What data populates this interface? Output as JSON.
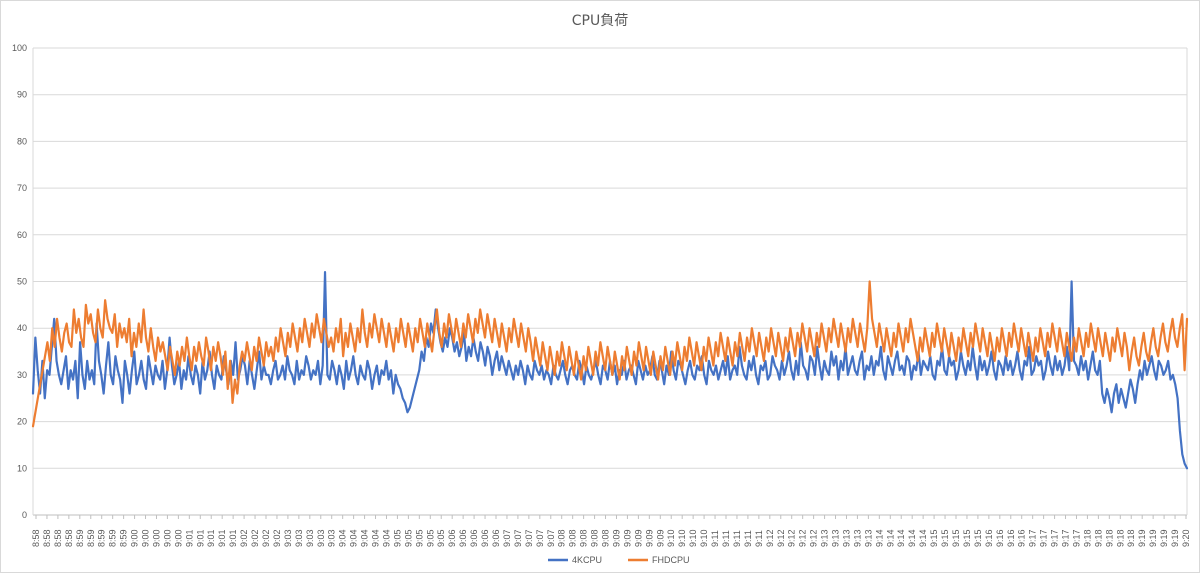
{
  "chart_data": {
    "type": "line",
    "title": "CPU負荷",
    "xlabel": "",
    "ylabel": "",
    "ylim": [
      0,
      100
    ],
    "yticks": [
      0,
      10,
      20,
      30,
      40,
      50,
      60,
      70,
      80,
      90,
      100
    ],
    "grid": true,
    "legend_position": "bottom",
    "x_tick_labels": [
      "8:58",
      "8:58",
      "8:58",
      "8:58",
      "8:59",
      "8:59",
      "8:59",
      "8:59",
      "8:59",
      "9:00",
      "9:00",
      "9:00",
      "9:00",
      "9:00",
      "9:01",
      "9:01",
      "9:01",
      "9:01",
      "9:01",
      "9:02",
      "9:02",
      "9:02",
      "9:02",
      "9:03",
      "9:03",
      "9:03",
      "9:03",
      "9:03",
      "9:04",
      "9:04",
      "9:04",
      "9:04",
      "9:04",
      "9:05",
      "9:05",
      "9:05",
      "9:05",
      "9:05",
      "9:06",
      "9:06",
      "9:06",
      "9:06",
      "9:06",
      "9:07",
      "9:07",
      "9:07",
      "9:07",
      "9:07",
      "9:08",
      "9:08",
      "9:08",
      "9:08",
      "9:08",
      "9:09",
      "9:09",
      "9:09",
      "9:09",
      "9:09",
      "9:10",
      "9:10",
      "9:10",
      "9:10",
      "9:11",
      "9:11",
      "9:11",
      "9:11",
      "9:11",
      "9:12",
      "9:12",
      "9:12",
      "9:12",
      "9:12",
      "9:13",
      "9:13",
      "9:13",
      "9:13",
      "9:13",
      "9:14",
      "9:14",
      "9:14",
      "9:14",
      "9:14",
      "9:15",
      "9:15",
      "9:15",
      "9:15",
      "9:15",
      "9:16",
      "9:16",
      "9:16",
      "9:16",
      "9:17",
      "9:17",
      "9:17",
      "9:17",
      "9:17",
      "9:18",
      "9:18",
      "9:18",
      "9:18",
      "9:18",
      "9:19",
      "9:19",
      "9:19",
      "9:19",
      "9:20"
    ],
    "series": [
      {
        "name": "4KCPU",
        "color": "#4472c4",
        "values": [
          26,
          38,
          31,
          26,
          33,
          25,
          31,
          30,
          36,
          42,
          33,
          30,
          28,
          31,
          34,
          27,
          31,
          29,
          33,
          25,
          37,
          30,
          27,
          33,
          29,
          31,
          28,
          41,
          33,
          30,
          26,
          32,
          37,
          30,
          28,
          34,
          31,
          29,
          24,
          33,
          30,
          26,
          31,
          35,
          28,
          30,
          33,
          29,
          27,
          34,
          31,
          28,
          32,
          30,
          29,
          33,
          27,
          31,
          38,
          32,
          28,
          30,
          33,
          27,
          31,
          29,
          34,
          30,
          28,
          32,
          30,
          26,
          33,
          29,
          31,
          35,
          30,
          27,
          32,
          30,
          29,
          34,
          31,
          28,
          33,
          30,
          37,
          29,
          31,
          34,
          32,
          28,
          33,
          30,
          27,
          31,
          35,
          29,
          32,
          30,
          30,
          28,
          31,
          33,
          29,
          30,
          32,
          29,
          34,
          31,
          30,
          28,
          33,
          29,
          31,
          30,
          34,
          32,
          29,
          31,
          30,
          33,
          28,
          32,
          52,
          30,
          29,
          33,
          31,
          28,
          32,
          30,
          27,
          33,
          29,
          31,
          34,
          30,
          28,
          32,
          30,
          29,
          33,
          31,
          27,
          30,
          32,
          28,
          31,
          30,
          33,
          29,
          31,
          26,
          30,
          28,
          27,
          25,
          24,
          22,
          23,
          25,
          27,
          29,
          31,
          35,
          33,
          38,
          36,
          41,
          39,
          44,
          40,
          37,
          35,
          38,
          36,
          40,
          38,
          35,
          37,
          34,
          36,
          39,
          33,
          36,
          34,
          38,
          35,
          33,
          37,
          35,
          32,
          36,
          34,
          30,
          33,
          35,
          31,
          34,
          32,
          30,
          33,
          31,
          29,
          32,
          30,
          33,
          31,
          28,
          32,
          30,
          29,
          33,
          31,
          30,
          32,
          29,
          31,
          30,
          28,
          32,
          30,
          29,
          31,
          33,
          30,
          28,
          31,
          32,
          30,
          29,
          33,
          31,
          28,
          32,
          30,
          29,
          31,
          33,
          30,
          28,
          32,
          31,
          29,
          33,
          30,
          32,
          28,
          31,
          30,
          33,
          29,
          31,
          32,
          30,
          28,
          33,
          31,
          29,
          32,
          30,
          31,
          34,
          30,
          29,
          33,
          31,
          28,
          32,
          30,
          35,
          31,
          29,
          33,
          32,
          30,
          28,
          31,
          33,
          30,
          29,
          32,
          31,
          34,
          30,
          28,
          33,
          31,
          30,
          32,
          29,
          31,
          33,
          30,
          34,
          29,
          31,
          32,
          30,
          36,
          32,
          30,
          29,
          33,
          31,
          34,
          30,
          28,
          32,
          31,
          33,
          29,
          30,
          34,
          32,
          31,
          29,
          33,
          30,
          32,
          35,
          31,
          29,
          33,
          30,
          37,
          32,
          31,
          29,
          34,
          33,
          30,
          36,
          32,
          29,
          33,
          31,
          30,
          35,
          32,
          34,
          29,
          33,
          31,
          36,
          30,
          32,
          34,
          31,
          30,
          33,
          35,
          29,
          32,
          31,
          34,
          30,
          33,
          32,
          36,
          31,
          29,
          34,
          32,
          30,
          33,
          35,
          31,
          32,
          30,
          34,
          33,
          29,
          32,
          31,
          35,
          30,
          33,
          32,
          31,
          34,
          30,
          29,
          33,
          32,
          36,
          31,
          30,
          34,
          32,
          33,
          29,
          31,
          35,
          32,
          30,
          33,
          31,
          36,
          32,
          29,
          34,
          31,
          33,
          30,
          32,
          35,
          31,
          29,
          33,
          32,
          30,
          34,
          31,
          33,
          30,
          32,
          35,
          31,
          29,
          33,
          32,
          36,
          30,
          31,
          34,
          32,
          33,
          29,
          31,
          35,
          32,
          30,
          34,
          31,
          33,
          30,
          32,
          36,
          31,
          50,
          33,
          32,
          30,
          34,
          31,
          33,
          29,
          32,
          35,
          31,
          30,
          33,
          26,
          24,
          27,
          25,
          22,
          26,
          28,
          24,
          27,
          25,
          23,
          26,
          29,
          27,
          24,
          28,
          31,
          29,
          33,
          30,
          32,
          34,
          31,
          29,
          33,
          32,
          30,
          31,
          33,
          29,
          30,
          28,
          25,
          18,
          13,
          11,
          10
        ]
      },
      {
        "name": "FHDCPU",
        "color": "#ed7d31",
        "values": [
          19,
          22,
          25,
          28,
          31,
          34,
          37,
          33,
          40,
          36,
          42,
          38,
          35,
          39,
          41,
          37,
          36,
          44,
          39,
          42,
          38,
          36,
          45,
          41,
          43,
          39,
          37,
          44,
          40,
          38,
          46,
          42,
          40,
          39,
          43,
          36,
          41,
          38,
          40,
          37,
          42,
          34,
          39,
          36,
          41,
          37,
          44,
          38,
          35,
          40,
          36,
          33,
          38,
          35,
          37,
          34,
          31,
          36,
          33,
          30,
          35,
          32,
          36,
          33,
          38,
          34,
          31,
          36,
          33,
          37,
          34,
          32,
          38,
          35,
          31,
          36,
          33,
          37,
          34,
          30,
          35,
          27,
          33,
          24,
          29,
          26,
          32,
          35,
          33,
          37,
          34,
          31,
          36,
          33,
          38,
          35,
          32,
          37,
          34,
          36,
          33,
          38,
          35,
          40,
          37,
          34,
          39,
          36,
          41,
          38,
          35,
          40,
          37,
          42,
          39,
          36,
          41,
          38,
          43,
          40,
          37,
          42,
          39,
          36,
          38,
          35,
          40,
          37,
          42,
          34,
          39,
          36,
          41,
          38,
          35,
          40,
          37,
          44,
          39,
          36,
          41,
          38,
          43,
          40,
          37,
          42,
          39,
          36,
          41,
          38,
          35,
          40,
          37,
          42,
          39,
          36,
          41,
          38,
          35,
          40,
          37,
          42,
          39,
          36,
          41,
          38,
          35,
          40,
          44,
          39,
          36,
          41,
          38,
          43,
          40,
          37,
          42,
          39,
          36,
          41,
          38,
          43,
          40,
          37,
          42,
          39,
          44,
          41,
          38,
          43,
          40,
          37,
          42,
          39,
          36,
          41,
          38,
          35,
          40,
          37,
          42,
          39,
          36,
          41,
          38,
          35,
          40,
          37,
          33,
          38,
          35,
          32,
          37,
          34,
          31,
          36,
          33,
          30,
          35,
          32,
          37,
          34,
          31,
          36,
          33,
          30,
          35,
          32,
          29,
          34,
          31,
          36,
          33,
          30,
          35,
          32,
          37,
          34,
          31,
          36,
          33,
          30,
          35,
          32,
          29,
          34,
          31,
          36,
          33,
          30,
          35,
          32,
          37,
          34,
          31,
          36,
          33,
          30,
          35,
          32,
          29,
          34,
          31,
          36,
          33,
          30,
          35,
          32,
          37,
          34,
          31,
          36,
          33,
          38,
          35,
          32,
          37,
          34,
          31,
          36,
          33,
          38,
          35,
          32,
          37,
          34,
          39,
          36,
          33,
          38,
          35,
          32,
          37,
          34,
          39,
          36,
          33,
          38,
          35,
          40,
          37,
          34,
          39,
          36,
          33,
          38,
          35,
          40,
          37,
          34,
          39,
          36,
          33,
          38,
          35,
          40,
          37,
          34,
          39,
          36,
          41,
          38,
          35,
          40,
          37,
          34,
          39,
          36,
          41,
          38,
          35,
          40,
          37,
          42,
          39,
          36,
          41,
          38,
          35,
          40,
          37,
          42,
          39,
          36,
          41,
          38,
          35,
          40,
          50,
          42,
          39,
          36,
          41,
          38,
          35,
          40,
          37,
          34,
          39,
          36,
          41,
          38,
          35,
          40,
          37,
          42,
          39,
          36,
          33,
          38,
          35,
          40,
          37,
          34,
          39,
          36,
          41,
          38,
          35,
          40,
          37,
          34,
          39,
          36,
          33,
          38,
          35,
          40,
          37,
          34,
          39,
          36,
          41,
          38,
          35,
          40,
          37,
          34,
          39,
          36,
          33,
          38,
          35,
          40,
          37,
          34,
          39,
          36,
          41,
          38,
          35,
          40,
          37,
          34,
          39,
          36,
          33,
          38,
          35,
          40,
          37,
          34,
          39,
          36,
          41,
          38,
          35,
          40,
          37,
          34,
          39,
          36,
          33,
          38,
          35,
          40,
          37,
          34,
          39,
          36,
          41,
          38,
          35,
          40,
          37,
          34,
          39,
          36,
          33,
          38,
          35,
          40,
          37,
          34,
          39,
          36,
          31,
          35,
          38,
          34,
          32,
          36,
          39,
          35,
          33,
          37,
          40,
          36,
          34,
          38,
          41,
          37,
          35,
          39,
          42,
          38,
          36,
          40,
          43,
          31,
          42
        ]
      }
    ]
  }
}
